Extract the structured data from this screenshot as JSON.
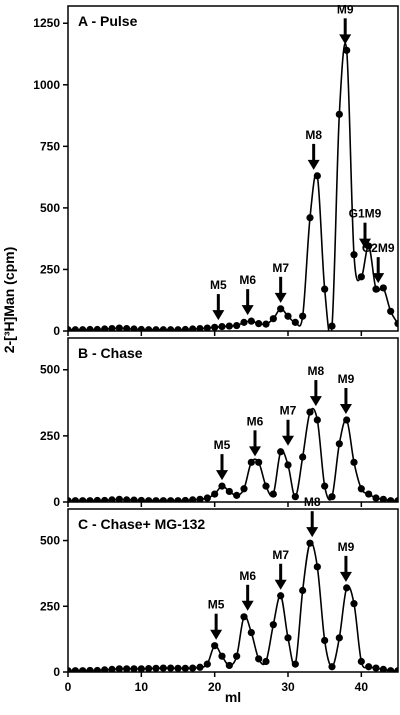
{
  "figure": {
    "ylabel": "2-[³H]Man (cpm)",
    "xlabel": "ml"
  },
  "chart_data": [
    {
      "type": "line",
      "title": "A - Pulse",
      "xlabel": "ml",
      "ylabel": "2-[³H]Man (cpm)",
      "xlim": [
        0,
        45
      ],
      "ylim": [
        0,
        1320
      ],
      "yticks": [
        0,
        250,
        500,
        750,
        1000,
        1250
      ],
      "x": [
        0,
        1,
        2,
        3,
        4,
        5,
        6,
        7,
        8,
        9,
        10,
        11,
        12,
        13,
        14,
        15,
        16,
        17,
        18,
        19,
        20,
        21,
        22,
        23,
        24,
        25,
        26,
        27,
        28,
        29,
        30,
        31,
        32,
        33,
        34,
        35,
        36,
        37,
        38,
        39,
        40,
        41,
        42,
        43,
        44,
        45
      ],
      "values": [
        5,
        5,
        5,
        6,
        6,
        8,
        10,
        12,
        10,
        8,
        6,
        5,
        5,
        5,
        5,
        5,
        6,
        8,
        10,
        12,
        15,
        18,
        20,
        22,
        35,
        40,
        30,
        28,
        50,
        90,
        60,
        35,
        60,
        460,
        630,
        170,
        20,
        880,
        1140,
        310,
        220,
        345,
        170,
        175,
        80,
        30
      ],
      "peaks": [
        {
          "label": "M5",
          "x": 20.5,
          "y": 20
        },
        {
          "label": "M6",
          "x": 24.5,
          "y": 40
        },
        {
          "label": "M7",
          "x": 29,
          "y": 90
        },
        {
          "label": "M8",
          "x": 33.5,
          "y": 630
        },
        {
          "label": "M9",
          "x": 37.8,
          "y": 1140
        },
        {
          "label": "G1M9",
          "x": 40.5,
          "y": 310
        },
        {
          "label": "G2M9",
          "x": 42.3,
          "y": 170
        }
      ]
    },
    {
      "type": "line",
      "title": "B - Chase",
      "xlabel": "ml",
      "ylabel": "2-[³H]Man (cpm)",
      "xlim": [
        0,
        45
      ],
      "ylim": [
        0,
        620
      ],
      "yticks": [
        0,
        250,
        500
      ],
      "x": [
        0,
        1,
        2,
        3,
        4,
        5,
        6,
        7,
        8,
        9,
        10,
        11,
        12,
        13,
        14,
        15,
        16,
        17,
        18,
        19,
        20,
        21,
        22,
        23,
        24,
        25,
        26,
        27,
        28,
        29,
        30,
        31,
        32,
        33,
        34,
        35,
        36,
        37,
        38,
        39,
        40,
        41,
        42,
        43,
        44,
        45
      ],
      "values": [
        5,
        5,
        5,
        5,
        6,
        6,
        8,
        10,
        8,
        7,
        6,
        5,
        5,
        5,
        5,
        5,
        6,
        8,
        10,
        15,
        30,
        60,
        40,
        25,
        50,
        150,
        150,
        60,
        30,
        190,
        140,
        20,
        170,
        340,
        310,
        60,
        20,
        220,
        310,
        150,
        50,
        30,
        15,
        10,
        5,
        5
      ],
      "peaks": [
        {
          "label": "M5",
          "x": 21,
          "y": 60
        },
        {
          "label": "M6",
          "x": 25.5,
          "y": 150
        },
        {
          "label": "M7",
          "x": 30,
          "y": 190
        },
        {
          "label": "M8",
          "x": 33.8,
          "y": 340
        },
        {
          "label": "M9",
          "x": 37.9,
          "y": 310
        }
      ]
    },
    {
      "type": "line",
      "title": "C - Chase+ MG-132",
      "xlabel": "ml",
      "ylabel": "2-[³H]Man (cpm)",
      "xlim": [
        0,
        45
      ],
      "ylim": [
        0,
        620
      ],
      "yticks": [
        0,
        250,
        500
      ],
      "xticks": [
        0,
        10,
        20,
        30,
        40
      ],
      "x": [
        0,
        1,
        2,
        3,
        4,
        5,
        6,
        7,
        8,
        9,
        10,
        11,
        12,
        13,
        14,
        15,
        16,
        17,
        18,
        19,
        20,
        21,
        22,
        23,
        24,
        25,
        26,
        27,
        28,
        29,
        30,
        31,
        32,
        33,
        34,
        35,
        36,
        37,
        38,
        39,
        40,
        41,
        42,
        43,
        44,
        45
      ],
      "values": [
        5,
        5,
        5,
        6,
        6,
        8,
        10,
        12,
        12,
        12,
        12,
        13,
        14,
        15,
        15,
        14,
        14,
        15,
        18,
        30,
        100,
        60,
        25,
        60,
        210,
        150,
        50,
        40,
        180,
        290,
        130,
        30,
        310,
        490,
        400,
        120,
        20,
        130,
        320,
        260,
        40,
        20,
        15,
        10,
        5,
        5
      ],
      "peaks": [
        {
          "label": "M5",
          "x": 20.2,
          "y": 100
        },
        {
          "label": "M6",
          "x": 24.5,
          "y": 210
        },
        {
          "label": "M7",
          "x": 29,
          "y": 290
        },
        {
          "label": "M8",
          "x": 33.3,
          "y": 490
        },
        {
          "label": "M9",
          "x": 37.9,
          "y": 320
        }
      ]
    }
  ]
}
